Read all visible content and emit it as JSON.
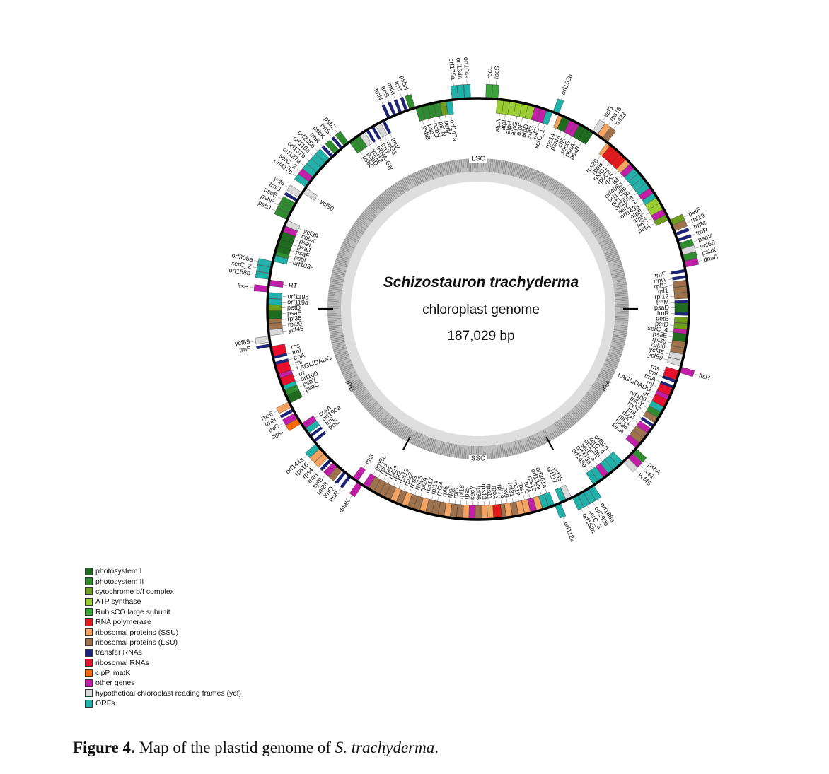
{
  "center": {
    "species": "Schizostauron trachyderma",
    "genome_type": "chloroplast genome",
    "size": "187,029 bp"
  },
  "regions": [
    "LSC",
    "IRA",
    "SSC",
    "IRB"
  ],
  "legend": [
    {
      "label": "photosystem I",
      "color": "#1f6b1f"
    },
    {
      "label": "photosystem II",
      "color": "#2e8b2e"
    },
    {
      "label": "cytochrome b/f complex",
      "color": "#6e9e1e"
    },
    {
      "label": "ATP synthase",
      "color": "#9acd32"
    },
    {
      "label": "RubisCO large subunit",
      "color": "#3aa63a"
    },
    {
      "label": "RNA polymerase",
      "color": "#e31a1c"
    },
    {
      "label": "ribosomal proteins (SSU)",
      "color": "#f4a460"
    },
    {
      "label": "ribosomal proteins (LSU)",
      "color": "#a0724b"
    },
    {
      "label": "transfer RNAs",
      "color": "#1a237e"
    },
    {
      "label": "ribosomal RNAs",
      "color": "#e8112d"
    },
    {
      "label": "clpP, matK",
      "color": "#ff6a00"
    },
    {
      "label": "other genes",
      "color": "#c21ea8"
    },
    {
      "label": "hypothetical chloroplast reading frames (ycf)",
      "color": "#d9d9d9"
    },
    {
      "label": "ORFs",
      "color": "#20b2aa"
    }
  ],
  "genes": [
    {
      "name": "rbcL",
      "cat": "RubisCO large subunit",
      "out": true
    },
    {
      "name": "rbcS",
      "cat": "RubisCO large subunit",
      "out": true
    },
    {
      "name": "atpA",
      "cat": "ATP synthase",
      "out": false
    },
    {
      "name": "atpI",
      "cat": "ATP synthase",
      "out": false
    },
    {
      "name": "atpH",
      "cat": "ATP synthase",
      "out": false
    },
    {
      "name": "atpG",
      "cat": "ATP synthase",
      "out": false
    },
    {
      "name": "atpF",
      "cat": "ATP synthase",
      "out": false
    },
    {
      "name": "atpD",
      "cat": "ATP synthase",
      "out": false
    },
    {
      "name": "sufB",
      "cat": "other genes",
      "out": false
    },
    {
      "name": "sufC",
      "cat": "other genes",
      "out": false
    },
    {
      "name": "xerC_1",
      "cat": "ORFs",
      "out": false
    },
    {
      "name": "orf152b",
      "cat": "ORFs",
      "out": true
    },
    {
      "name": "rps14",
      "cat": "ribosomal proteins (SSU)",
      "out": false
    },
    {
      "name": "psaM",
      "cat": "photosystem I",
      "out": false
    },
    {
      "name": "chlI",
      "cat": "other genes",
      "out": false
    },
    {
      "name": "secG",
      "cat": "other genes",
      "out": false
    },
    {
      "name": "psaA",
      "cat": "photosystem I",
      "out": false
    },
    {
      "name": "psaB",
      "cat": "photosystem I",
      "out": false
    },
    {
      "name": "ycf3",
      "cat": "hypothetical chloroplast reading frames (ycf)",
      "out": true
    },
    {
      "name": "rps18",
      "cat": "ribosomal proteins (SSU)",
      "out": true
    },
    {
      "name": "rpl33",
      "cat": "ribosomal proteins (LSU)",
      "out": true
    },
    {
      "name": "rps20",
      "cat": "ribosomal proteins (SSU)",
      "out": false
    },
    {
      "name": "rpoB",
      "cat": "RNA polymerase",
      "out": false
    },
    {
      "name": "rpoC1",
      "cat": "RNA polymerase",
      "out": false
    },
    {
      "name": "rpoC2",
      "cat": "RNA polymerase",
      "out": false
    },
    {
      "name": "rps2",
      "cat": "ribosomal proteins (SSU)",
      "out": false
    },
    {
      "name": "tsf",
      "cat": "other genes",
      "out": false
    },
    {
      "name": "orf406a",
      "cat": "ORFs",
      "out": false
    },
    {
      "name": "orf148b",
      "cat": "ORFs",
      "out": false
    },
    {
      "name": "orf123b",
      "cat": "ORFs",
      "out": false
    },
    {
      "name": "orf166a",
      "cat": "ORFs",
      "out": false
    },
    {
      "name": "serC_1",
      "cat": "other genes",
      "out": false
    },
    {
      "name": "orf143a",
      "cat": "ORFs",
      "out": false
    },
    {
      "name": "atpB",
      "cat": "ATP synthase",
      "out": false
    },
    {
      "name": "atpE",
      "cat": "ATP synthase",
      "out": false
    },
    {
      "name": "tatC",
      "cat": "other genes",
      "out": false
    },
    {
      "name": "petA",
      "cat": "cytochrome b/f complex",
      "out": false
    },
    {
      "name": "petF",
      "cat": "cytochrome b/f complex",
      "out": true
    },
    {
      "name": "rpl19",
      "cat": "ribosomal proteins (LSU)",
      "out": true
    },
    {
      "name": "trnM",
      "cat": "transfer RNAs",
      "out": true
    },
    {
      "name": "trnR",
      "cat": "transfer RNAs",
      "out": true
    },
    {
      "name": "psbV",
      "cat": "photosystem II",
      "out": true
    },
    {
      "name": "ycf66",
      "cat": "hypothetical chloroplast reading frames (ycf)",
      "out": true
    },
    {
      "name": "psbX",
      "cat": "photosystem II",
      "out": true
    },
    {
      "name": "dnaB",
      "cat": "other genes",
      "out": true
    },
    {
      "name": "trnF",
      "cat": "transfer RNAs",
      "out": false
    },
    {
      "name": "trnW",
      "cat": "transfer RNAs",
      "out": false
    },
    {
      "name": "rpl11",
      "cat": "ribosomal proteins (LSU)",
      "out": false
    },
    {
      "name": "rpl1",
      "cat": "ribosomal proteins (LSU)",
      "out": false
    },
    {
      "name": "rpl12",
      "cat": "ribosomal proteins (LSU)",
      "out": false
    },
    {
      "name": "trnM",
      "cat": "transfer RNAs",
      "out": false
    },
    {
      "name": "psaD",
      "cat": "photosystem I",
      "out": false
    },
    {
      "name": "trnR",
      "cat": "transfer RNAs",
      "out": false
    },
    {
      "name": "petB",
      "cat": "cytochrome b/f complex",
      "out": false
    },
    {
      "name": "petD",
      "cat": "cytochrome b/f complex",
      "out": false
    },
    {
      "name": "serC_4",
      "cat": "other genes",
      "out": false
    },
    {
      "name": "psaE",
      "cat": "photosystem I",
      "out": false
    },
    {
      "name": "rpl35",
      "cat": "ribosomal proteins (LSU)",
      "out": false
    },
    {
      "name": "rpl20",
      "cat": "ribosomal proteins (LSU)",
      "out": false
    },
    {
      "name": "ycf45",
      "cat": "hypothetical chloroplast reading frames (ycf)",
      "out": false
    },
    {
      "name": "ycf89",
      "cat": "hypothetical chloroplast reading frames (ycf)",
      "out": false
    },
    {
      "name": "ftsH",
      "cat": "other genes",
      "out": true
    },
    {
      "name": "rns",
      "cat": "ribosomal RNAs",
      "out": false
    },
    {
      "name": "trnI",
      "cat": "transfer RNAs",
      "out": false
    },
    {
      "name": "trnA",
      "cat": "transfer RNAs",
      "out": false
    },
    {
      "name": "rnl",
      "cat": "ribosomal RNAs",
      "out": false
    },
    {
      "name": "LAGLIDADG",
      "cat": "other genes",
      "out": false
    },
    {
      "name": "rrf",
      "cat": "ribosomal RNAs",
      "out": false
    },
    {
      "name": "orf100",
      "cat": "ORFs",
      "out": false
    },
    {
      "name": "psbY",
      "cat": "photosystem II",
      "out": false
    },
    {
      "name": "rpl32",
      "cat": "ribosomal proteins (LSU)",
      "out": false
    },
    {
      "name": "trnL",
      "cat": "transfer RNAs",
      "out": false
    },
    {
      "name": "rbcR",
      "cat": "other genes",
      "out": false
    },
    {
      "name": "rpl21",
      "cat": "ribosomal proteins (LSU)",
      "out": false
    },
    {
      "name": "rpl34",
      "cat": "ribosomal proteins (LSU)",
      "out": false
    },
    {
      "name": "secA",
      "cat": "other genes",
      "out": false
    },
    {
      "name": "psbA",
      "cat": "photosystem II",
      "out": true
    },
    {
      "name": "ccs1",
      "cat": "other genes",
      "out": true
    },
    {
      "name": "ycf45",
      "cat": "hypothetical chloroplast reading frames (ycf)",
      "out": true
    },
    {
      "name": "orf516",
      "cat": "ORFs",
      "out": false
    },
    {
      "name": "xerC_4",
      "cat": "ORFs",
      "out": false
    },
    {
      "name": "orf120b",
      "cat": "ORFs",
      "out": false
    },
    {
      "name": "serC_3",
      "cat": "other genes",
      "out": false
    },
    {
      "name": "orf313a",
      "cat": "ORFs",
      "out": false
    },
    {
      "name": "orf148a",
      "cat": "ORFs",
      "out": false
    },
    {
      "name": "orf188a",
      "cat": "ORFs",
      "out": true
    },
    {
      "name": "orf290b",
      "cat": "ORFs",
      "out": true
    },
    {
      "name": "xerC_3",
      "cat": "ORFs",
      "out": true
    },
    {
      "name": "orf152a",
      "cat": "ORFs",
      "out": true
    },
    {
      "name": "ycf35",
      "cat": "hypothetical chloroplast reading frames (ycf)",
      "out": false
    },
    {
      "name": "orf117",
      "cat": "ORFs",
      "out": false
    },
    {
      "name": "orf112a",
      "cat": "ORFs",
      "out": true
    },
    {
      "name": "orf361a",
      "cat": "ORFs",
      "out": false
    },
    {
      "name": "orf132a",
      "cat": "ORFs",
      "out": false
    },
    {
      "name": "rps10",
      "cat": "ribosomal proteins (SSU)",
      "out": false
    },
    {
      "name": "tufA",
      "cat": "other genes",
      "out": false
    },
    {
      "name": "rps7",
      "cat": "ribosomal proteins (SSU)",
      "out": false
    },
    {
      "name": "rps12",
      "cat": "ribosomal proteins (SSU)",
      "out": false
    },
    {
      "name": "rpl31",
      "cat": "ribosomal proteins (LSU)",
      "out": false
    },
    {
      "name": "rps9",
      "cat": "ribosomal proteins (SSU)",
      "out": false
    },
    {
      "name": "rpl13",
      "cat": "ribosomal proteins (LSU)",
      "out": false
    },
    {
      "name": "rpoA",
      "cat": "RNA polymerase",
      "out": false
    },
    {
      "name": "rps11",
      "cat": "ribosomal proteins (SSU)",
      "out": false
    },
    {
      "name": "rps13",
      "cat": "ribosomal proteins (SSU)",
      "out": false
    },
    {
      "name": "rpl36",
      "cat": "ribosomal proteins (LSU)",
      "out": false
    },
    {
      "name": "secY",
      "cat": "other genes",
      "out": false
    },
    {
      "name": "rps5",
      "cat": "ribosomal proteins (SSU)",
      "out": false
    },
    {
      "name": "rpl18",
      "cat": "ribosomal proteins (LSU)",
      "out": false
    },
    {
      "name": "rpl6",
      "cat": "ribosomal proteins (LSU)",
      "out": false
    },
    {
      "name": "rps8",
      "cat": "ribosomal proteins (SSU)",
      "out": false
    },
    {
      "name": "rpl5",
      "cat": "ribosomal proteins (LSU)",
      "out": false
    },
    {
      "name": "rpl24",
      "cat": "ribosomal proteins (LSU)",
      "out": false
    },
    {
      "name": "rpl14",
      "cat": "ribosomal proteins (LSU)",
      "out": false
    },
    {
      "name": "rps17",
      "cat": "ribosomal proteins (SSU)",
      "out": false
    },
    {
      "name": "rpl29",
      "cat": "ribosomal proteins (LSU)",
      "out": false
    },
    {
      "name": "rpl16",
      "cat": "ribosomal proteins (LSU)",
      "out": false
    },
    {
      "name": "rps3",
      "cat": "ribosomal proteins (SSU)",
      "out": false
    },
    {
      "name": "rpl22",
      "cat": "ribosomal proteins (LSU)",
      "out": false
    },
    {
      "name": "rps19",
      "cat": "ribosomal proteins (SSU)",
      "out": false
    },
    {
      "name": "rpl2",
      "cat": "ribosomal proteins (LSU)",
      "out": false
    },
    {
      "name": "rpl23",
      "cat": "ribosomal proteins (LSU)",
      "out": false
    },
    {
      "name": "rpl4",
      "cat": "ribosomal proteins (LSU)",
      "out": false
    },
    {
      "name": "rpl3",
      "cat": "ribosomal proteins (LSU)",
      "out": false
    },
    {
      "name": "groEL",
      "cat": "other genes",
      "out": false
    },
    {
      "name": "dnaK",
      "cat": "other genes",
      "out": true
    },
    {
      "name": "thiS",
      "cat": "other genes",
      "out": false
    },
    {
      "name": "trnR",
      "cat": "transfer RNAs",
      "out": true
    },
    {
      "name": "trnQ",
      "cat": "transfer RNAs",
      "out": true
    },
    {
      "name": "rpl28",
      "cat": "ribosomal proteins (LSU)",
      "out": true
    },
    {
      "name": "syfB",
      "cat": "other genes",
      "out": true
    },
    {
      "name": "trnH",
      "cat": "transfer RNAs",
      "out": true
    },
    {
      "name": "rps4",
      "cat": "ribosomal proteins (SSU)",
      "out": true
    },
    {
      "name": "rps16",
      "cat": "ribosomal proteins (SSU)",
      "out": true
    },
    {
      "name": "orf144a",
      "cat": "ORFs",
      "out": true
    },
    {
      "name": "trnC",
      "cat": "transfer RNAs",
      "out": false
    },
    {
      "name": "trnL",
      "cat": "transfer RNAs",
      "out": false
    },
    {
      "name": "orf190a",
      "cat": "ORFs",
      "out": false
    },
    {
      "name": "ccsA",
      "cat": "other genes",
      "out": false
    },
    {
      "name": "clpC",
      "cat": "clpP, matK",
      "out": true
    },
    {
      "name": "thiG",
      "cat": "other genes",
      "out": true
    },
    {
      "name": "trnN",
      "cat": "transfer RNAs",
      "out": true
    },
    {
      "name": "rps6",
      "cat": "ribosomal proteins (SSU)",
      "out": true
    },
    {
      "name": "psaC",
      "cat": "photosystem I",
      "out": false
    },
    {
      "name": "psbY",
      "cat": "photosystem II",
      "out": false
    },
    {
      "name": "orf100",
      "cat": "ORFs",
      "out": false
    },
    {
      "name": "rrf",
      "cat": "ribosomal RNAs",
      "out": false
    },
    {
      "name": "LAGLIDADG",
      "cat": "other genes",
      "out": false
    },
    {
      "name": "rnl",
      "cat": "ribosomal RNAs",
      "out": false
    },
    {
      "name": "trnA",
      "cat": "transfer RNAs",
      "out": false
    },
    {
      "name": "trnI",
      "cat": "transfer RNAs",
      "out": false
    },
    {
      "name": "rns",
      "cat": "ribosomal RNAs",
      "out": false
    },
    {
      "name": "trnP",
      "cat": "transfer RNAs",
      "out": true
    },
    {
      "name": "ycf89",
      "cat": "hypothetical chloroplast reading frames (ycf)",
      "out": true
    },
    {
      "name": "ycf45",
      "cat": "hypothetical chloroplast reading frames (ycf)",
      "out": false
    },
    {
      "name": "rpl20",
      "cat": "ribosomal proteins (LSU)",
      "out": false
    },
    {
      "name": "rpl35",
      "cat": "ribosomal proteins (LSU)",
      "out": false
    },
    {
      "name": "psaE",
      "cat": "photosystem I",
      "out": false
    },
    {
      "name": "petD",
      "cat": "cytochrome b/f complex",
      "out": false
    },
    {
      "name": "orf119a",
      "cat": "ORFs",
      "out": false
    },
    {
      "name": "orf119a",
      "cat": "ORFs",
      "out": false
    },
    {
      "name": "ftsH",
      "cat": "other genes",
      "out": true
    },
    {
      "name": "RT",
      "cat": "other genes",
      "out": false
    },
    {
      "name": "orf158b",
      "cat": "ORFs",
      "out": true
    },
    {
      "name": "xerC_2",
      "cat": "ORFs",
      "out": true
    },
    {
      "name": "orf305a",
      "cat": "ORFs",
      "out": true
    },
    {
      "name": "orf103a",
      "cat": "ORFs",
      "out": false
    },
    {
      "name": "psbI",
      "cat": "photosystem II",
      "out": false
    },
    {
      "name": "psaF",
      "cat": "photosystem I",
      "out": false
    },
    {
      "name": "psaJ",
      "cat": "photosystem I",
      "out": false
    },
    {
      "name": "psaL",
      "cat": "photosystem I",
      "out": false
    },
    {
      "name": "cbbX",
      "cat": "other genes",
      "out": false
    },
    {
      "name": "ycf39",
      "cat": "hypothetical chloroplast reading frames (ycf)",
      "out": false
    },
    {
      "name": "psbJ",
      "cat": "photosystem II",
      "out": true
    },
    {
      "name": "psbF",
      "cat": "photosystem II",
      "out": true
    },
    {
      "name": "psbE",
      "cat": "photosystem II",
      "out": true
    },
    {
      "name": "trnG",
      "cat": "transfer RNAs",
      "out": true
    },
    {
      "name": "ycf4",
      "cat": "hypothetical chloroplast reading frames (ycf)",
      "out": true
    },
    {
      "name": "ycf90",
      "cat": "hypothetical chloroplast reading frames (ycf)",
      "out": false
    },
    {
      "name": "orf417b",
      "cat": "ORFs",
      "out": true
    },
    {
      "name": "serC_2",
      "cat": "other genes",
      "out": true
    },
    {
      "name": "orf127a",
      "cat": "ORFs",
      "out": true
    },
    {
      "name": "orf137b",
      "cat": "ORFs",
      "out": true
    },
    {
      "name": "orf110a",
      "cat": "ORFs",
      "out": true
    },
    {
      "name": "orf238b",
      "cat": "ORFs",
      "out": true
    },
    {
      "name": "trnK",
      "cat": "transfer RNAs",
      "out": true
    },
    {
      "name": "psbK",
      "cat": "photosystem II",
      "out": true
    },
    {
      "name": "trnS",
      "cat": "transfer RNAs",
      "out": true
    },
    {
      "name": "psbZ",
      "cat": "photosystem II",
      "out": true
    },
    {
      "name": "psbC",
      "cat": "photosystem II",
      "out": false
    },
    {
      "name": "psbD",
      "cat": "photosystem II",
      "out": false
    },
    {
      "name": "ycf12",
      "cat": "hypothetical chloroplast reading frames (ycf)",
      "out": false
    },
    {
      "name": "tRNA-Gly",
      "cat": "transfer RNAs",
      "out": false
    },
    {
      "name": "trnY",
      "cat": "transfer RNAs",
      "out": false
    },
    {
      "name": "ycf33",
      "cat": "hypothetical chloroplast reading frames (ycf)",
      "out": false
    },
    {
      "name": "trnV",
      "cat": "transfer RNAs",
      "out": false
    },
    {
      "name": "trnN",
      "cat": "transfer RNAs",
      "out": true
    },
    {
      "name": "trnS",
      "cat": "transfer RNAs",
      "out": true
    },
    {
      "name": "trnM",
      "cat": "transfer RNAs",
      "out": true
    },
    {
      "name": "trnT",
      "cat": "transfer RNAs",
      "out": true
    },
    {
      "name": "psbN",
      "cat": "photosystem II",
      "out": true
    },
    {
      "name": "psbB",
      "cat": "photosystem II",
      "out": false
    },
    {
      "name": "psbT",
      "cat": "photosystem II",
      "out": false
    },
    {
      "name": "psbH",
      "cat": "photosystem II",
      "out": false
    },
    {
      "name": "psbN",
      "cat": "photosystem II",
      "out": false
    },
    {
      "name": "petM",
      "cat": "cytochrome b/f complex",
      "out": false
    },
    {
      "name": "orf147a",
      "cat": "ORFs",
      "out": false
    },
    {
      "name": "orf175a",
      "cat": "ORFs",
      "out": true
    },
    {
      "name": "orf134a",
      "cat": "ORFs",
      "out": true
    },
    {
      "name": "orf104a",
      "cat": "ORFs",
      "out": true
    }
  ],
  "caption": {
    "label": "Figure 4.",
    "text": " Map of the plastid genome of ",
    "species": "S. trachyderma",
    "end": "."
  }
}
